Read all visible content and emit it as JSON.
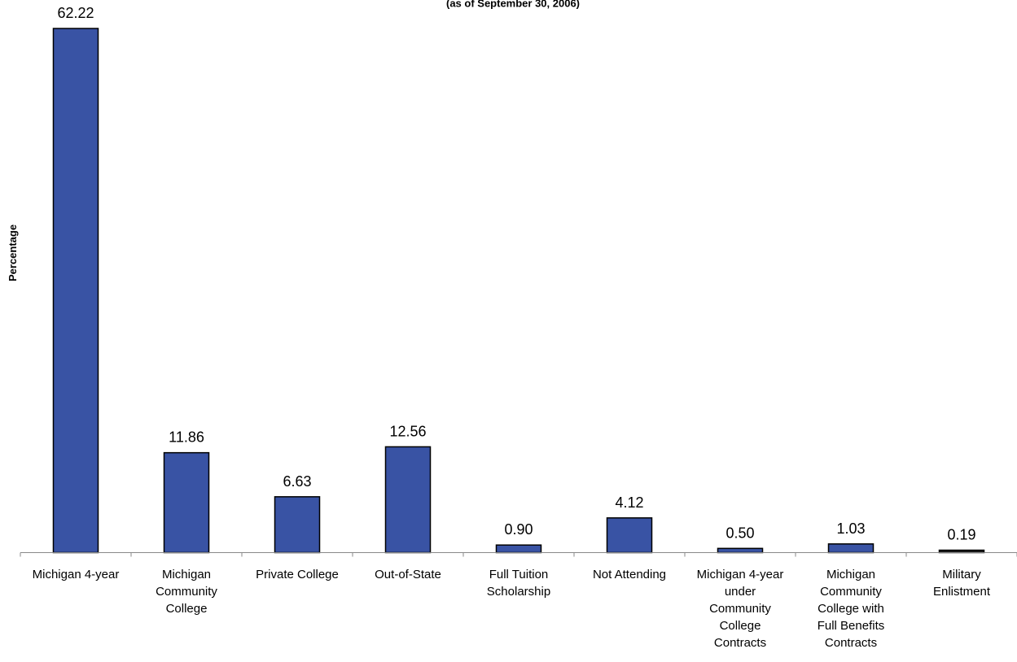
{
  "chart_data": {
    "type": "bar",
    "subtitle": "(as of September 30, 2006)",
    "xlabel": "",
    "ylabel": "Percentage",
    "categories": [
      "Michigan 4-year",
      "Michigan Community College",
      "Private College",
      "Out-of-State",
      "Full Tuition Scholarship",
      "Not Attending",
      "Michigan 4-year under Community College Contracts",
      "Michigan Community College with Full Benefits Contracts",
      "Military Enlistment"
    ],
    "category_lines": [
      [
        "Michigan 4-year"
      ],
      [
        "Michigan",
        "Community",
        "College"
      ],
      [
        "Private College"
      ],
      [
        "Out-of-State"
      ],
      [
        "Full Tuition",
        "Scholarship"
      ],
      [
        "Not Attending"
      ],
      [
        "Michigan 4-year",
        "under",
        "Community",
        "College",
        "Contracts"
      ],
      [
        "Michigan",
        "Community",
        "College with",
        "Full Benefits",
        "Contracts"
      ],
      [
        "Military",
        "Enlistment"
      ]
    ],
    "values": [
      62.22,
      11.86,
      6.63,
      12.56,
      0.9,
      4.12,
      0.5,
      1.03,
      0.19
    ],
    "data_labels": [
      "62.22",
      "11.86",
      "6.63",
      "12.56",
      "0.90",
      "4.12",
      "0.50",
      "1.03",
      "0.19"
    ],
    "ylim": [
      0,
      62.22
    ],
    "grid": false,
    "legend": "none",
    "colors": {
      "bar": "#3953a4",
      "bar_last": "#1f1f1f",
      "bar_border": "#000000",
      "axis": "#888888"
    }
  }
}
